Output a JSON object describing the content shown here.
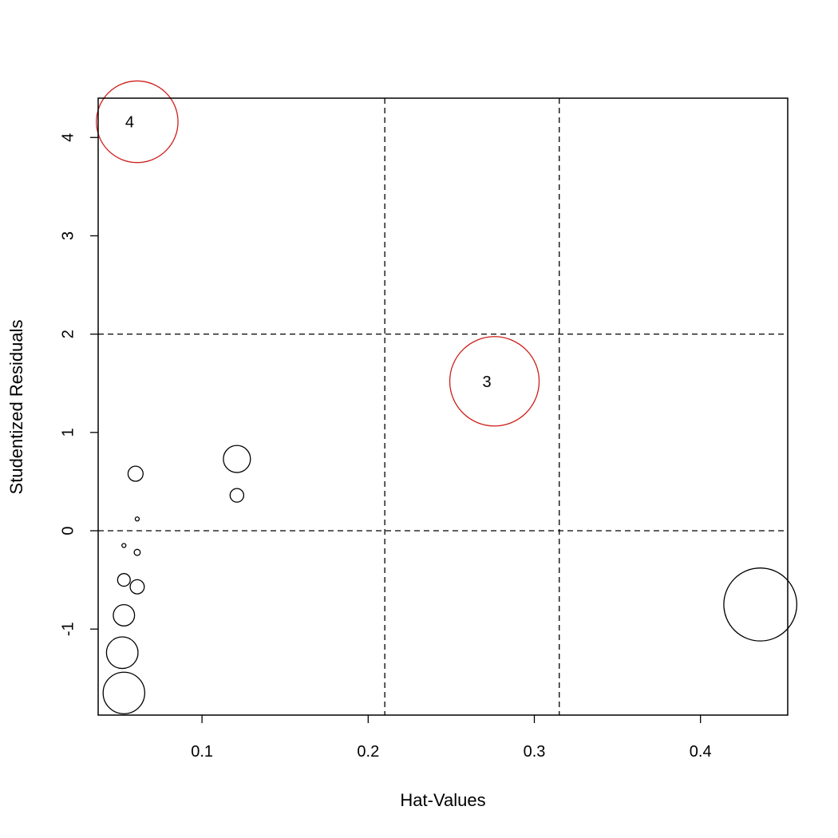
{
  "chart_data": {
    "type": "scatter",
    "title": "",
    "xlabel": "Hat-Values",
    "ylabel": "Studentized Residuals",
    "xlim": [
      0.0375,
      0.4525
    ],
    "ylim": [
      -1.875,
      4.4
    ],
    "xticks": [
      0.1,
      0.2,
      0.3,
      0.4
    ],
    "xtick_labels": [
      "0.1",
      "0.2",
      "0.3",
      "0.4"
    ],
    "yticks": [
      -1,
      0,
      1,
      2,
      3,
      4
    ],
    "ytick_labels": [
      "-1",
      "0",
      "1",
      "2",
      "3",
      "4"
    ],
    "reference_lines": {
      "horizontal": [
        0,
        2
      ],
      "vertical": [
        0.21,
        0.315
      ],
      "style": "dashed"
    },
    "grid": false,
    "size_variable": "Cook's distance (bubble area)",
    "points": [
      {
        "x": 0.061,
        "y": 4.16,
        "size": 1.0,
        "label": "4",
        "highlight": true
      },
      {
        "x": 0.276,
        "y": 1.52,
        "size": 1.2,
        "label": "3",
        "highlight": true
      },
      {
        "x": 0.436,
        "y": -0.75,
        "size": 0.8,
        "label": "",
        "highlight": false
      },
      {
        "x": 0.121,
        "y": 0.73,
        "size": 0.11,
        "label": "",
        "highlight": false
      },
      {
        "x": 0.121,
        "y": 0.36,
        "size": 0.028,
        "label": "",
        "highlight": false
      },
      {
        "x": 0.06,
        "y": 0.58,
        "size": 0.034,
        "label": "",
        "highlight": false
      },
      {
        "x": 0.061,
        "y": 0.12,
        "size": 0.0015,
        "label": "",
        "highlight": false
      },
      {
        "x": 0.053,
        "y": -0.15,
        "size": 0.0015,
        "label": "",
        "highlight": false
      },
      {
        "x": 0.061,
        "y": -0.22,
        "size": 0.0055,
        "label": "",
        "highlight": false
      },
      {
        "x": 0.053,
        "y": -0.5,
        "size": 0.024,
        "label": "",
        "highlight": false
      },
      {
        "x": 0.061,
        "y": -0.57,
        "size": 0.03,
        "label": "",
        "highlight": false
      },
      {
        "x": 0.053,
        "y": -0.86,
        "size": 0.068,
        "label": "",
        "highlight": false
      },
      {
        "x": 0.052,
        "y": -1.24,
        "size": 0.15,
        "label": "",
        "highlight": false
      },
      {
        "x": 0.053,
        "y": -1.65,
        "size": 0.26,
        "label": "",
        "highlight": false
      }
    ],
    "colors": {
      "highlight": "#cc1f1a",
      "normal": "#000000"
    }
  }
}
